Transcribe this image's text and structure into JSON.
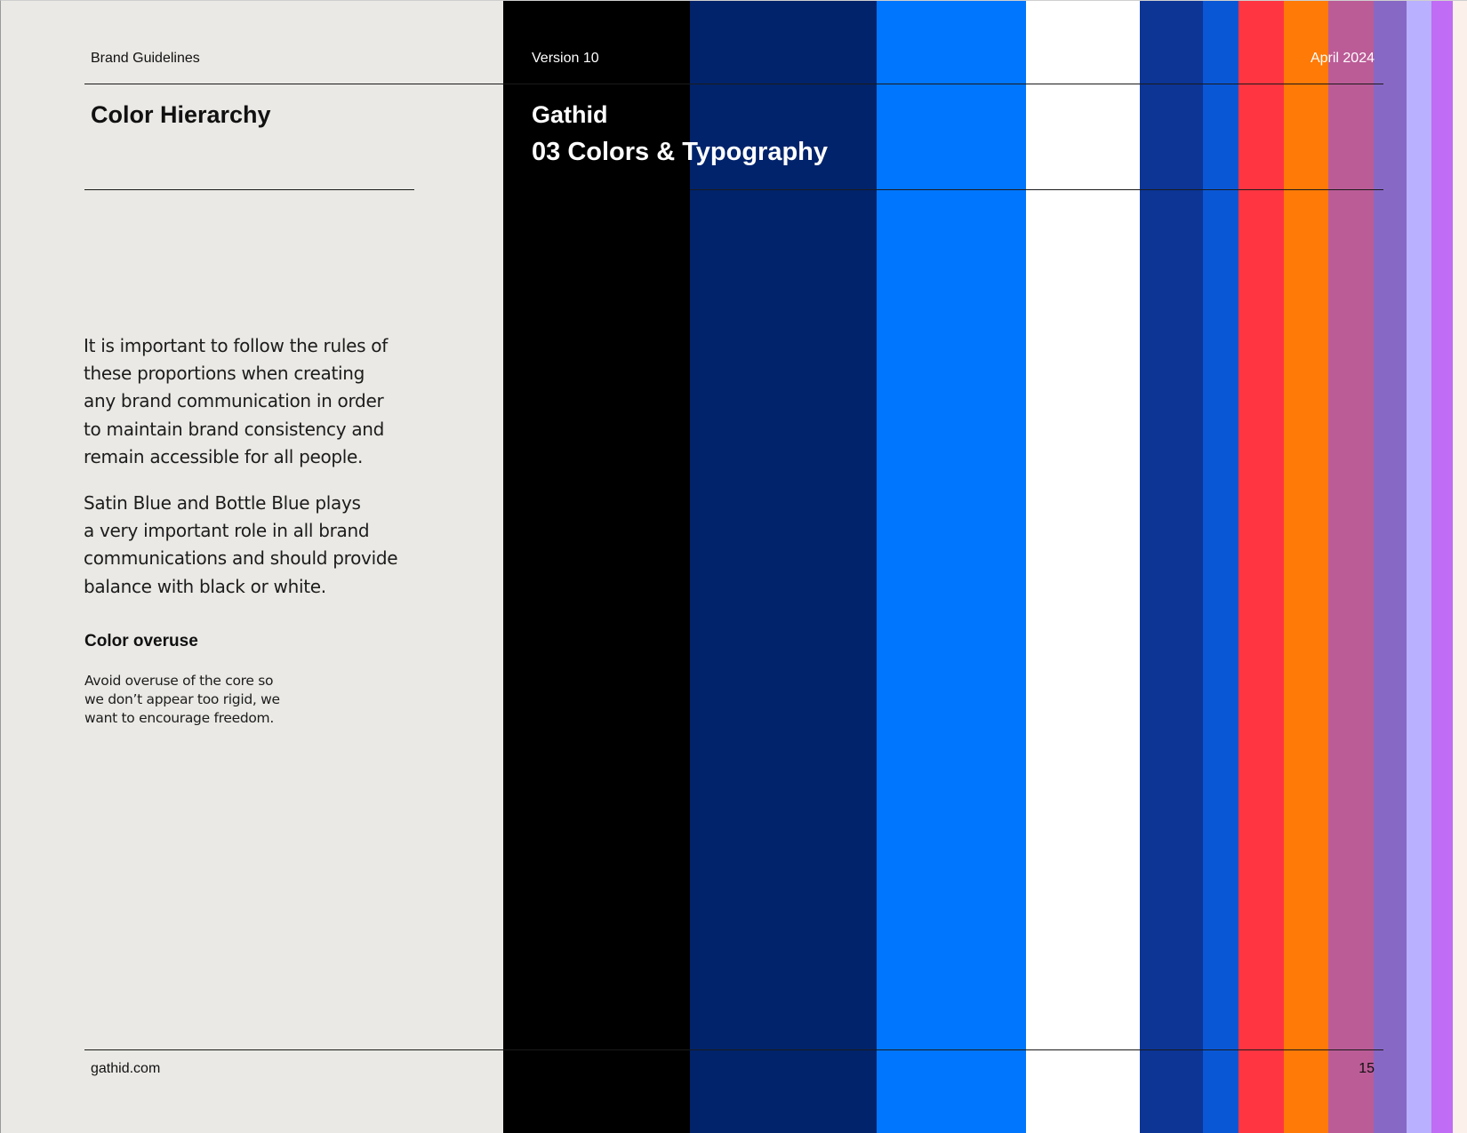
{
  "header": {
    "brand_label": "Brand Guidelines",
    "version_label": "Version 10",
    "date_label": "April 2024"
  },
  "title_block": {
    "section_title": "Color Hierarchy",
    "company_name": "Gathid",
    "chapter_title": "03 Colors & Typography"
  },
  "body": {
    "paragraph_1_lines": [
      "It is important to follow the rules of",
      "these proportions when creating",
      "any brand communication in order",
      "to maintain brand consistency and",
      "remain accessible for all people."
    ],
    "paragraph_2_lines": [
      "Satin Blue and Bottle Blue plays",
      "a very important role in all brand",
      "communications and should provide",
      "balance with black or white."
    ],
    "subheading": "Color overuse",
    "note_lines": [
      "Avoid overuse of the core so",
      "we don’t appear too rigid, we",
      "want to encourage freedom."
    ]
  },
  "footer": {
    "site": "gathid.com",
    "page_number": "15"
  },
  "colors": {
    "page_background": "#eae9e5",
    "stripes": [
      "#000000",
      "#00236b",
      "#0076ff",
      "#ffffff",
      "#0c3596",
      "#0a57d6",
      "#ff3641",
      "#ff7a06",
      "#bb5c97",
      "#8868c5",
      "#b9b0ff",
      "#c06cf5",
      "#fbf0ea"
    ]
  }
}
